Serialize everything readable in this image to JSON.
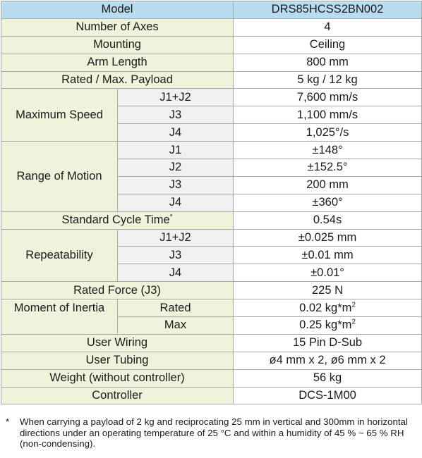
{
  "header": {
    "label": "Model",
    "value": "DRS85HCSS2BN002"
  },
  "rows": {
    "axes": {
      "label": "Number of Axes",
      "value": "4"
    },
    "mounting": {
      "label": "Mounting",
      "value": "Ceiling"
    },
    "arm": {
      "label": "Arm Length",
      "value": "800 mm"
    },
    "payload": {
      "label": "Rated / Max. Payload",
      "value": "5 kg / 12 kg"
    },
    "speed": {
      "label": "Maximum Speed",
      "items": [
        {
          "axis": "J1+J2",
          "value": "7,600 mm/s"
        },
        {
          "axis": "J3",
          "value": "1,100 mm/s"
        },
        {
          "axis": "J4",
          "value": "1,025°/s"
        }
      ]
    },
    "motion": {
      "label": "Range of Motion",
      "items": [
        {
          "axis": "J1",
          "value": "±148°"
        },
        {
          "axis": "J2",
          "value": "±152.5°"
        },
        {
          "axis": "J3",
          "value": "200 mm"
        },
        {
          "axis": "J4",
          "value": "±360°"
        }
      ]
    },
    "cycle": {
      "label": "Standard Cycle Time",
      "mark": "*",
      "value": "0.54s"
    },
    "repeat": {
      "label": "Repeatability",
      "items": [
        {
          "axis": "J1+J2",
          "value": "±0.025 mm"
        },
        {
          "axis": "J3",
          "value": "±0.01 mm"
        },
        {
          "axis": "J4",
          "value": "±0.01°"
        }
      ]
    },
    "force": {
      "label": "Rated Force (J3)",
      "value": "225 N"
    },
    "inertia": {
      "label": "Moment of Inertia",
      "items": [
        {
          "axis": "Rated",
          "value": "0.02 kg*m",
          "exp": "2"
        },
        {
          "axis": "Max",
          "value": "0.25 kg*m",
          "exp": "2"
        }
      ]
    },
    "wiring": {
      "label": "User Wiring",
      "value": "15 Pin D-Sub"
    },
    "tubing": {
      "label": "User Tubing",
      "value": "ø4 mm x 2, ø6 mm x 2"
    },
    "weight": {
      "label": "Weight (without controller)",
      "value": "56 kg"
    },
    "controller": {
      "label": "Controller",
      "value": "DCS-1M00"
    }
  },
  "footnote": {
    "mark": "*",
    "text": "When carrying a payload of 2 kg and reciprocating 25 mm in vertical and 300mm in horizontal directions under an operating temperature of 25 °C and within a humidity of 45 % ~ 65 % RH (non-condensing)."
  }
}
